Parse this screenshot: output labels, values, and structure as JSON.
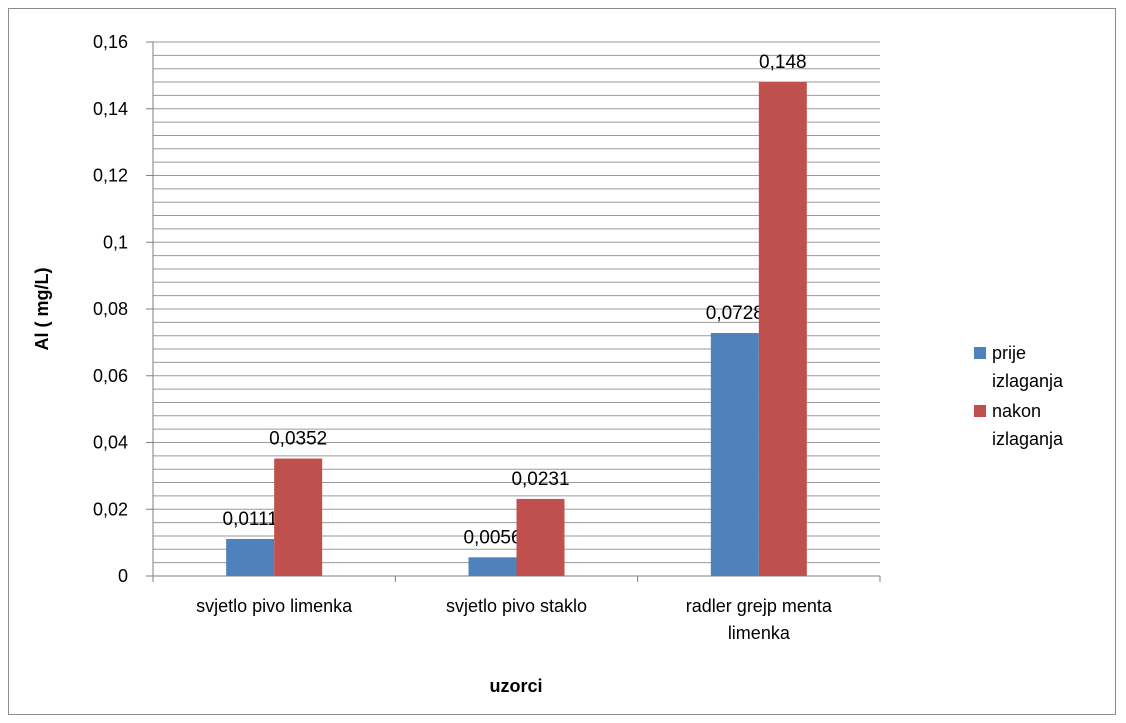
{
  "chart_data": {
    "type": "bar",
    "title": "",
    "xlabel": "uzorci",
    "ylabel": "Al ( mg/L)",
    "ylim": [
      0,
      0.16
    ],
    "y_ticks": [
      0,
      0.02,
      0.04,
      0.06,
      0.08,
      0.1,
      0.12,
      0.14,
      0.16
    ],
    "y_tick_labels": [
      "0",
      "0,02",
      "0,04",
      "0,06",
      "0,08",
      "0,1",
      "0,12",
      "0,14",
      "0,16"
    ],
    "grid": true,
    "legend_position": "right",
    "categories": [
      "svjetlo pivo limenka",
      "svjetlo pivo staklo",
      "radler grejp menta limenka"
    ],
    "category_label_lines": [
      [
        "svjetlo pivo limenka"
      ],
      [
        "svjetlo pivo staklo"
      ],
      [
        "radler grejp menta",
        "limenka"
      ]
    ],
    "series": [
      {
        "name": "prije izlaganja",
        "name_lines": [
          "prije",
          "izlaganja"
        ],
        "color": "#4F81BD",
        "values": [
          0.0111,
          0.0056,
          0.0728
        ],
        "labels": [
          "0,0111",
          "0,0056",
          "0,0728"
        ]
      },
      {
        "name": "nakon izlaganja",
        "name_lines": [
          "nakon",
          "izlaganja"
        ],
        "color": "#C0504D",
        "values": [
          0.0352,
          0.0231,
          0.148
        ],
        "labels": [
          "0,0352",
          "0,0231",
          "0,148"
        ]
      }
    ]
  }
}
